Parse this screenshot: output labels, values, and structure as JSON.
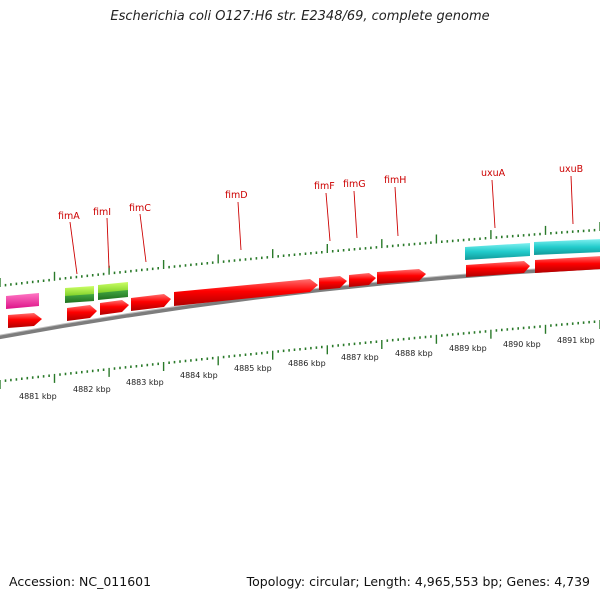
{
  "title": "Escherichia coli O127:H6 str. E2348/69, complete genome",
  "footer": {
    "accession": "Accession: NC_011601",
    "summary": "Topology: circular; Length: 4,965,553 bp; Genes: 4,739"
  },
  "colors": {
    "backbone": "#7d7d7d",
    "cds_forward": "#ff0000",
    "cds_reverse": "#ff0000",
    "tick": "#2a7a2a",
    "label": "#cc0000",
    "fimA_I": "#99ee33",
    "uxu": "#22cccc",
    "left_feature": "#ff2d9a"
  },
  "scale_labels": [
    "4881 kbp",
    "4882 kbp",
    "4883 kbp",
    "4884 kbp",
    "4885 kbp",
    "4886 kbp",
    "4887 kbp",
    "4888 kbp",
    "4889 kbp",
    "4890 kbp",
    "4891 kbp"
  ],
  "gene_labels": [
    "fimA",
    "fimI",
    "fimC",
    "fimD",
    "fimF",
    "fimG",
    "fimH",
    "uxuA",
    "uxuB"
  ]
}
